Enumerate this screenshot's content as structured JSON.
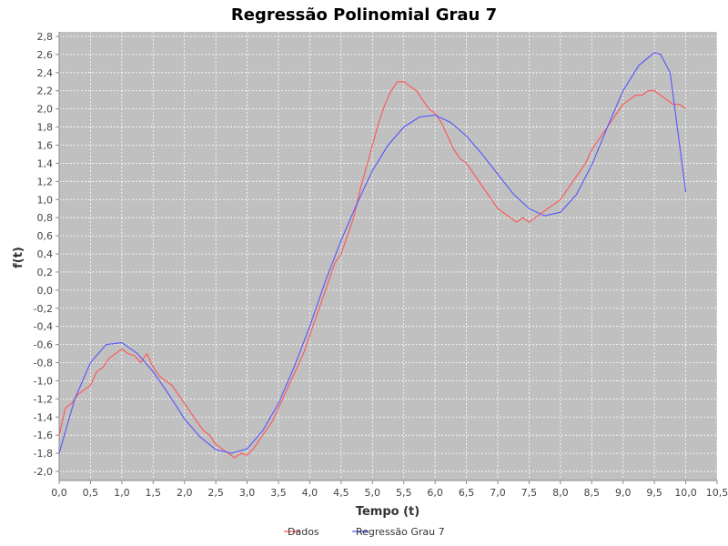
{
  "chart_data": {
    "type": "line",
    "title": "Regressão Polinomial Grau 7",
    "xlabel": "Tempo (t)",
    "ylabel": "f(t)",
    "xlim": [
      0.0,
      10.5
    ],
    "ylim": [
      -2.1,
      2.85
    ],
    "x_ticks": [
      "0,0",
      "0,5",
      "1,0",
      "1,5",
      "2,0",
      "2,5",
      "3,0",
      "3,5",
      "4,0",
      "4,5",
      "5,0",
      "5,5",
      "6,0",
      "6,5",
      "7,0",
      "7,5",
      "8,0",
      "8,5",
      "9,0",
      "9,5",
      "10,0",
      "10,5"
    ],
    "y_ticks": [
      "2,8",
      "2,6",
      "2,4",
      "2,2",
      "2,0",
      "1,8",
      "1,6",
      "1,4",
      "1,2",
      "1,0",
      "0,8",
      "0,6",
      "0,4",
      "0,2",
      "0,0",
      "-0,2",
      "-0,4",
      "-0,6",
      "-0,8",
      "-1,0",
      "-1,2",
      "-1,4",
      "-1,6",
      "-1,8",
      "-2,0"
    ],
    "grid": true,
    "legend_position": "bottom",
    "series": [
      {
        "name": "Dados",
        "color": "#ff5555",
        "x": [
          0.0,
          0.1,
          0.2,
          0.3,
          0.4,
          0.5,
          0.6,
          0.7,
          0.8,
          0.9,
          1.0,
          1.1,
          1.2,
          1.3,
          1.4,
          1.5,
          1.6,
          1.7,
          1.8,
          1.9,
          2.0,
          2.1,
          2.2,
          2.3,
          2.4,
          2.5,
          2.6,
          2.7,
          2.8,
          2.9,
          3.0,
          3.1,
          3.2,
          3.3,
          3.4,
          3.5,
          3.6,
          3.7,
          3.8,
          3.9,
          4.0,
          4.1,
          4.2,
          4.3,
          4.4,
          4.5,
          4.6,
          4.7,
          4.8,
          4.9,
          5.0,
          5.1,
          5.2,
          5.3,
          5.4,
          5.5,
          5.6,
          5.7,
          5.8,
          5.9,
          6.0,
          6.1,
          6.2,
          6.3,
          6.4,
          6.5,
          6.6,
          6.7,
          6.8,
          6.9,
          7.0,
          7.1,
          7.2,
          7.3,
          7.4,
          7.5,
          7.6,
          7.7,
          7.8,
          7.9,
          8.0,
          8.1,
          8.2,
          8.3,
          8.4,
          8.5,
          8.6,
          8.7,
          8.8,
          8.9,
          9.0,
          9.1,
          9.2,
          9.3,
          9.4,
          9.5,
          9.6,
          9.7,
          9.8,
          9.9,
          10.0
        ],
        "values": [
          -1.6,
          -1.3,
          -1.25,
          -1.15,
          -1.1,
          -1.05,
          -0.9,
          -0.85,
          -0.75,
          -0.7,
          -0.65,
          -0.7,
          -0.72,
          -0.8,
          -0.7,
          -0.85,
          -0.95,
          -1.0,
          -1.05,
          -1.15,
          -1.25,
          -1.35,
          -1.45,
          -1.55,
          -1.6,
          -1.7,
          -1.75,
          -1.8,
          -1.85,
          -1.8,
          -1.82,
          -1.75,
          -1.65,
          -1.55,
          -1.45,
          -1.3,
          -1.15,
          -1.0,
          -0.85,
          -0.7,
          -0.5,
          -0.3,
          -0.1,
          0.1,
          0.3,
          0.4,
          0.6,
          0.8,
          1.1,
          1.35,
          1.6,
          1.85,
          2.05,
          2.2,
          2.3,
          2.3,
          2.25,
          2.2,
          2.1,
          2.0,
          1.95,
          1.85,
          1.7,
          1.55,
          1.45,
          1.4,
          1.3,
          1.2,
          1.1,
          1.0,
          0.9,
          0.85,
          0.8,
          0.75,
          0.8,
          0.75,
          0.8,
          0.85,
          0.9,
          0.95,
          1.0,
          1.1,
          1.2,
          1.3,
          1.4,
          1.55,
          1.65,
          1.75,
          1.85,
          1.95,
          2.05,
          2.1,
          2.15,
          2.15,
          2.2,
          2.2,
          2.15,
          2.1,
          2.05,
          2.05,
          2.0
        ]
      },
      {
        "name": "Regressão Grau 7",
        "color": "#5555ff",
        "x": [
          0.0,
          0.25,
          0.5,
          0.75,
          1.0,
          1.25,
          1.5,
          1.75,
          2.0,
          2.25,
          2.5,
          2.75,
          3.0,
          3.25,
          3.5,
          3.75,
          4.0,
          4.25,
          4.5,
          4.75,
          5.0,
          5.25,
          5.5,
          5.75,
          6.0,
          6.25,
          6.5,
          6.75,
          7.0,
          7.25,
          7.5,
          7.75,
          8.0,
          8.25,
          8.5,
          8.75,
          9.0,
          9.25,
          9.5,
          9.6,
          9.75,
          10.0
        ],
        "values": [
          -1.8,
          -1.2,
          -0.8,
          -0.6,
          -0.58,
          -0.7,
          -0.9,
          -1.15,
          -1.42,
          -1.62,
          -1.76,
          -1.8,
          -1.75,
          -1.55,
          -1.25,
          -0.85,
          -0.4,
          0.1,
          0.55,
          0.95,
          1.32,
          1.6,
          1.8,
          1.91,
          1.93,
          1.85,
          1.7,
          1.5,
          1.28,
          1.06,
          0.9,
          0.82,
          0.86,
          1.05,
          1.38,
          1.8,
          2.2,
          2.48,
          2.62,
          2.6,
          2.4,
          1.08
        ]
      }
    ]
  }
}
